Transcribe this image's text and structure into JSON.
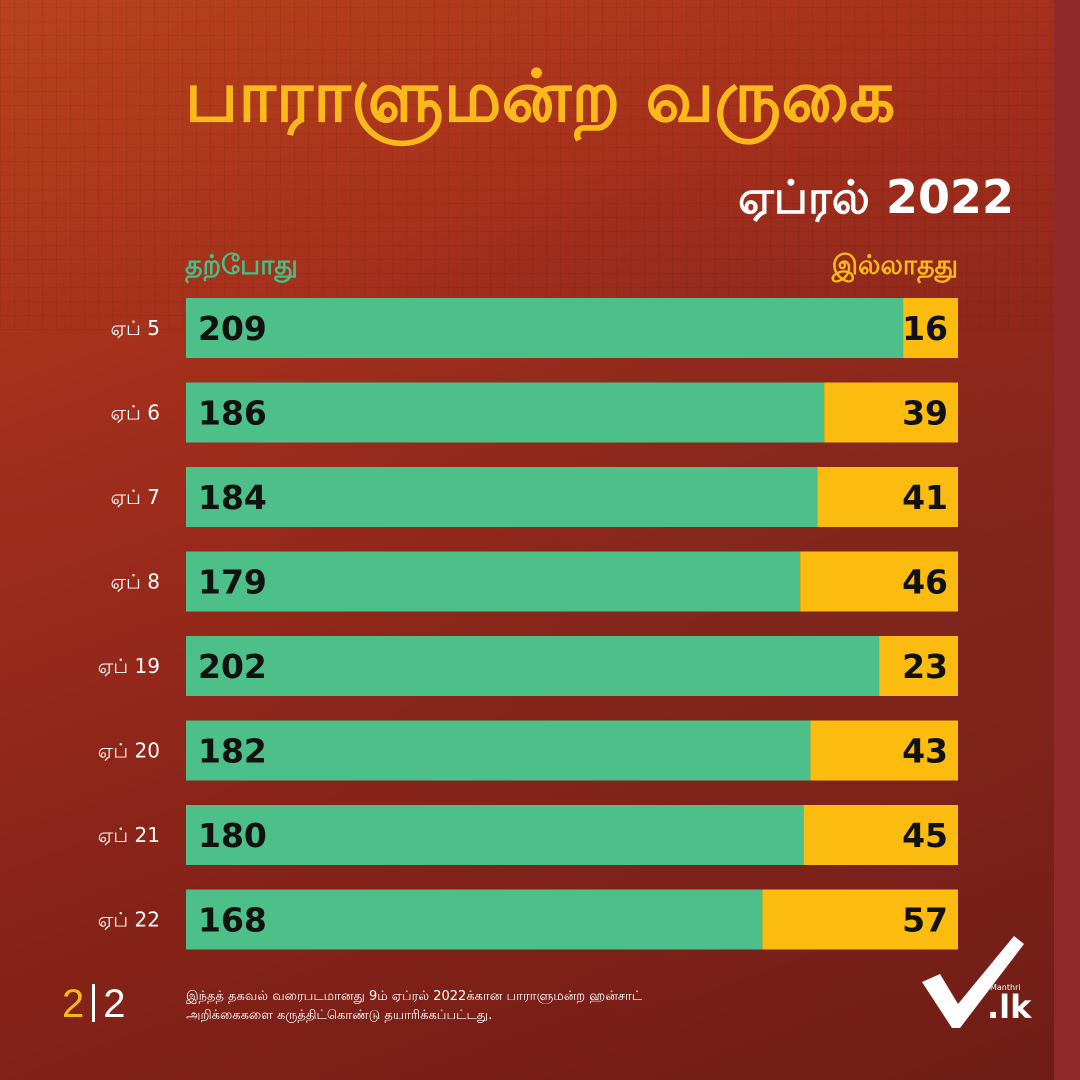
{
  "header": {
    "title": "பாராளுமன்ற வருகை",
    "subtitle": "ஏப்ரல் 2022"
  },
  "colors": {
    "present": "#4dbf88",
    "absent": "#fbbb0f",
    "title": "#f9b91a"
  },
  "chart_data": {
    "type": "bar",
    "orientation": "horizontal",
    "stacked": true,
    "categories": [
      "ஏப் 5",
      "ஏப் 6",
      "ஏப் 7",
      "ஏப் 8",
      "ஏப் 19",
      "ஏப் 20",
      "ஏப் 21",
      "ஏப் 22"
    ],
    "series": [
      {
        "name": "தற்போது",
        "values": [
          209,
          186,
          184,
          179,
          202,
          182,
          180,
          168
        ]
      },
      {
        "name": "இல்லாதது",
        "values": [
          16,
          39,
          41,
          46,
          23,
          43,
          45,
          57
        ]
      }
    ],
    "xlim": [
      0,
      225
    ],
    "legend": "top"
  },
  "footer": {
    "page_current": "2",
    "page_total": "2",
    "note_line1": "இந்தத் தகவல் வரைபடமானது 9ம் ஏப்ரல் 2022க்கான பாராளுமன்ற ஹன்சாட்",
    "note_line2": "அறிக்கைகளை கருத்திட்கொண்டு தயாரிக்கப்பட்டது.",
    "logo_small": "Manthri",
    "logo_main": ".lk"
  }
}
